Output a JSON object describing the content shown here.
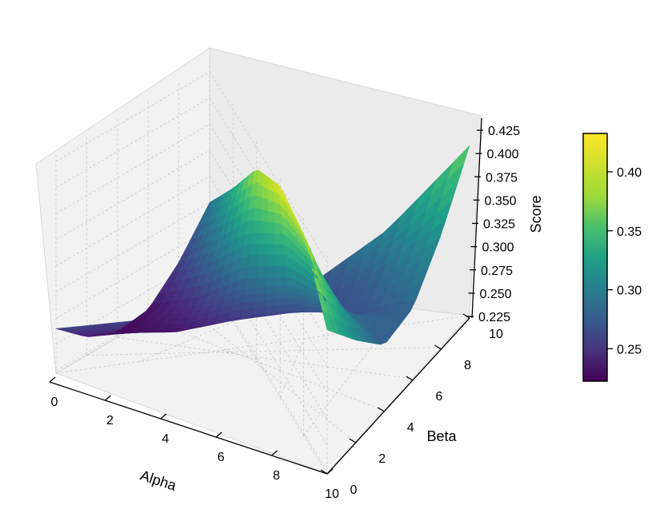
{
  "chart_data": {
    "type": "surface3d",
    "title": "",
    "xlabel": "Alpha",
    "ylabel": "Beta",
    "zlabel": "Score",
    "xlim": [
      0,
      10
    ],
    "ylim": [
      0,
      10
    ],
    "zlim": [
      0.2225,
      0.4325
    ],
    "x_ticks": [
      "0",
      "2",
      "4",
      "6",
      "8",
      "10"
    ],
    "y_ticks": [
      "0",
      "2",
      "4",
      "6",
      "8",
      "10"
    ],
    "z_ticks": [
      "0.225",
      "0.250",
      "0.275",
      "0.300",
      "0.325",
      "0.350",
      "0.375",
      "0.400",
      "0.425"
    ],
    "surface": {
      "x": [
        0,
        2,
        4,
        6,
        8,
        10
      ],
      "y": [
        0,
        2,
        4,
        6,
        8,
        10
      ],
      "z": [
        [
          0.3,
          0.35,
          0.405,
          0.425,
          0.415,
          0.36
        ],
        [
          0.26,
          0.3,
          0.345,
          0.37,
          0.36,
          0.32
        ],
        [
          0.232,
          0.255,
          0.29,
          0.31,
          0.305,
          0.285
        ],
        [
          0.228,
          0.235,
          0.255,
          0.27,
          0.275,
          0.29
        ],
        [
          0.24,
          0.245,
          0.252,
          0.262,
          0.285,
          0.33
        ],
        [
          0.265,
          0.262,
          0.258,
          0.27,
          0.315,
          0.385
        ]
      ]
    },
    "colormap": "viridis",
    "colorbar": {
      "ticks": [
        "0.25",
        "0.30",
        "0.35",
        "0.40"
      ],
      "range": [
        0.2225,
        0.4325
      ]
    },
    "grid": true
  }
}
